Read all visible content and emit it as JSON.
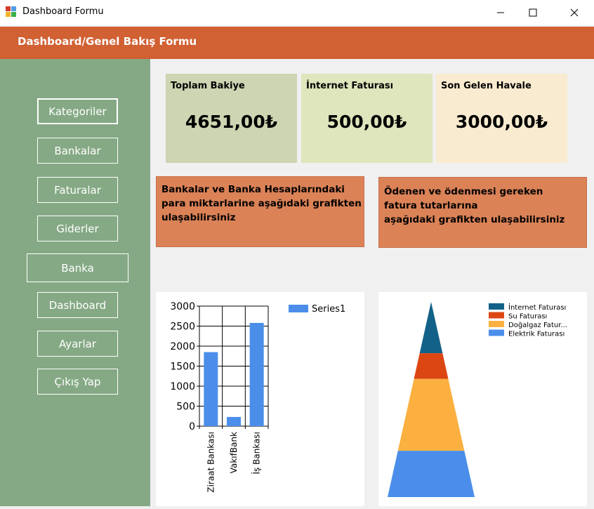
{
  "window": {
    "title": "Dashboard Formu"
  },
  "header": {
    "title": "Dashboard/Genel Bakış Formu"
  },
  "sidebar": {
    "items": [
      {
        "label": "Kategoriler"
      },
      {
        "label": "Bankalar"
      },
      {
        "label": "Faturalar"
      },
      {
        "label": "Giderler"
      },
      {
        "label": "Banka"
      },
      {
        "label": "Dashboard"
      },
      {
        "label": "Ayarlar"
      },
      {
        "label": "Çıkış Yap"
      }
    ]
  },
  "cards": [
    {
      "label": "Toplam Bakiye",
      "value": "4651,00₺",
      "color": "#cdd5b2"
    },
    {
      "label": "İnternet Faturası",
      "value": "500,00₺",
      "color": "#dfe5bc"
    },
    {
      "label": "Son Gelen Havale",
      "value": "3000,00₺",
      "color": "#f9ebd0"
    }
  ],
  "banners": {
    "left": [
      "Bankalar ve Banka Hesaplarındaki",
      "para miktarlarine aşağıdaki grafikten",
      "ulaşabilirsiniz"
    ],
    "right": [
      "Ödenen ve ödenmesi gereken",
      "fatura tutarlarına",
      "aşağıdaki grafikten ulaşabilirsiniz"
    ]
  },
  "colors": {
    "header": "#d16033",
    "sidebar": "#85a985",
    "banner": "#db8257"
  },
  "chart_data": [
    {
      "type": "bar",
      "categories": [
        "Ziraat Bankası",
        "VakıfBank",
        "İş Bankası"
      ],
      "series": [
        {
          "name": "Series1",
          "values": [
            1850,
            230,
            2580
          ],
          "color": "#4a8eea"
        }
      ],
      "yticks": [
        "0",
        "500",
        "1000",
        "1500",
        "2000",
        "2500",
        "3000"
      ],
      "ylim": [
        0,
        3000
      ],
      "grid": true,
      "legend": "top-right"
    },
    {
      "type": "pyramid",
      "categories": [
        "İnternet Faturası",
        "Su Faturası",
        "Doğalgaz Fatur...",
        "Elektrik Faturası"
      ],
      "values": [
        500,
        250,
        700,
        450
      ],
      "colors": [
        "#126188",
        "#dc4613",
        "#fbb040",
        "#4a8eea"
      ],
      "legend": "top-right"
    }
  ]
}
